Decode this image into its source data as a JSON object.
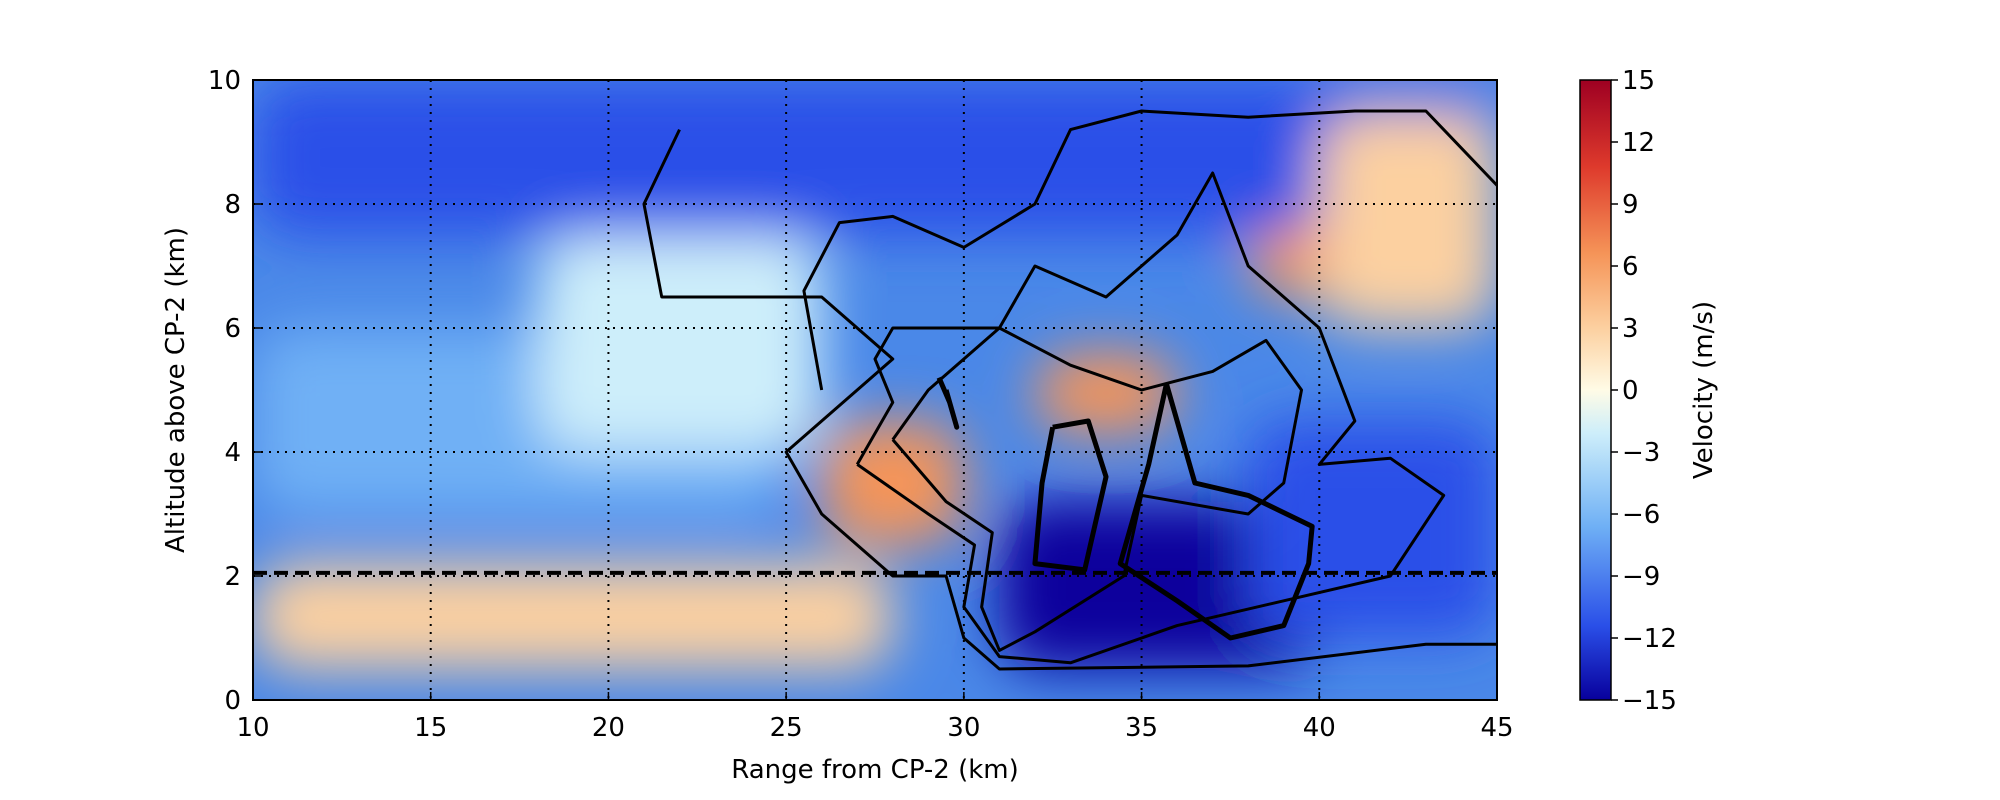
{
  "chart_data": {
    "type": "heatmap",
    "title": "",
    "xlabel": "Range from CP-2 (km)",
    "ylabel": "Altitude above CP-2 (km)",
    "xlim": [
      10,
      45
    ],
    "ylim": [
      0,
      10
    ],
    "xticks": [
      10,
      15,
      20,
      25,
      30,
      35,
      40,
      45
    ],
    "yticks": [
      0,
      2,
      4,
      6,
      8,
      10
    ],
    "grid": "dotted",
    "reference_line": {
      "y": 2.05,
      "style": "dashed"
    },
    "colorbar": {
      "label": "Velocity (m/s)",
      "range": [
        -15,
        15
      ],
      "ticks": [
        "15",
        "12",
        "9",
        "6",
        "3",
        "0",
        "−3",
        "−6",
        "−9",
        "−12",
        "−15"
      ],
      "colors": [
        "#08009c",
        "#2a4fe8",
        "#6fb0f5",
        "#cdeefa",
        "#fffbe6",
        "#fcd0a0",
        "#f59458",
        "#de3a2c",
        "#9e0022"
      ]
    },
    "velocity_regions": [
      {
        "v": -12,
        "x": [
          10,
          45
        ],
        "y": [
          7.5,
          10
        ]
      },
      {
        "v": -8,
        "x": [
          10,
          25
        ],
        "y": [
          3,
          6
        ]
      },
      {
        "v": -5,
        "x": [
          18,
          26
        ],
        "y": [
          4,
          7.5
        ]
      },
      {
        "v": 4,
        "x": [
          10,
          28
        ],
        "y": [
          0.5,
          2.2
        ]
      },
      {
        "v": 7,
        "x": [
          26,
          30
        ],
        "y": [
          2.5,
          4.5
        ]
      },
      {
        "v": 9,
        "x": [
          32,
          36
        ],
        "y": [
          4.3,
          5.6
        ]
      },
      {
        "v": 6,
        "x": [
          38,
          41
        ],
        "y": [
          6.5,
          7.6
        ]
      },
      {
        "v": 3,
        "x": [
          40,
          45
        ],
        "y": [
          6,
          9.5
        ]
      },
      {
        "v": -14,
        "x": [
          31,
          40
        ],
        "y": [
          0.5,
          3.2
        ]
      },
      {
        "v": -10,
        "x": [
          38,
          45
        ],
        "y": [
          1,
          4.5
        ]
      }
    ],
    "contours": [
      {
        "level": 1,
        "points": [
          [
            22,
            9.2
          ],
          [
            21,
            8
          ],
          [
            21.5,
            6.5
          ],
          [
            24,
            6.5
          ],
          [
            26,
            6.5
          ],
          [
            28,
            5.5
          ],
          [
            25,
            4
          ],
          [
            26,
            3
          ],
          [
            28,
            2
          ],
          [
            29.5,
            2
          ],
          [
            30,
            1
          ],
          [
            31,
            0.5
          ],
          [
            38,
            0.55
          ],
          [
            43,
            0.9
          ],
          [
            45,
            0.9
          ]
        ]
      },
      {
        "level": 1,
        "points": [
          [
            26,
            5
          ],
          [
            25.5,
            6.6
          ],
          [
            26.5,
            7.7
          ],
          [
            28,
            7.8
          ],
          [
            30,
            7.3
          ],
          [
            32,
            8
          ],
          [
            33,
            9.2
          ],
          [
            35,
            9.5
          ],
          [
            38,
            9.4
          ],
          [
            41,
            9.5
          ],
          [
            43,
            9.5
          ],
          [
            45,
            8.3
          ]
        ]
      },
      {
        "level": 2,
        "points": [
          [
            27,
            3.8
          ],
          [
            28,
            4.8
          ],
          [
            27.5,
            5.5
          ],
          [
            28,
            6
          ],
          [
            30,
            6
          ],
          [
            31,
            6
          ],
          [
            32,
            7
          ],
          [
            34,
            6.5
          ],
          [
            36,
            7.5
          ],
          [
            37,
            8.5
          ],
          [
            38,
            7
          ],
          [
            40,
            6
          ],
          [
            41,
            4.5
          ],
          [
            40,
            3.8
          ],
          [
            42,
            3.9
          ],
          [
            43.5,
            3.3
          ],
          [
            42,
            2
          ],
          [
            36,
            1.2
          ],
          [
            33,
            0.6
          ],
          [
            31,
            0.7
          ],
          [
            30,
            1.5
          ],
          [
            30.3,
            2.5
          ],
          [
            29,
            3
          ],
          [
            27,
            3.8
          ]
        ]
      },
      {
        "level": 3,
        "points": [
          [
            28,
            4.2
          ],
          [
            29,
            5
          ],
          [
            30,
            5.5
          ],
          [
            31,
            6
          ],
          [
            33,
            5.4
          ],
          [
            35,
            5
          ],
          [
            37,
            5.3
          ],
          [
            38.5,
            5.8
          ],
          [
            39.5,
            5
          ],
          [
            39,
            3.5
          ],
          [
            38,
            3
          ],
          [
            35,
            3.3
          ],
          [
            34.5,
            2
          ],
          [
            32,
            1.1
          ],
          [
            31,
            0.8
          ],
          [
            30.5,
            1.5
          ],
          [
            30.8,
            2.7
          ],
          [
            29.5,
            3.2
          ],
          [
            28,
            4.2
          ]
        ]
      },
      {
        "level": 4,
        "points": [
          [
            32.5,
            4.4
          ],
          [
            33.5,
            4.5
          ],
          [
            34,
            3.6
          ],
          [
            33.4,
            2.1
          ],
          [
            32,
            2.2
          ],
          [
            32.2,
            3.5
          ],
          [
            32.5,
            4.4
          ]
        ]
      },
      {
        "level": 4,
        "points": [
          [
            35.7,
            5.1
          ],
          [
            35.2,
            3.8
          ],
          [
            34.4,
            2.2
          ],
          [
            36,
            1.6
          ],
          [
            37.5,
            1
          ],
          [
            39,
            1.2
          ],
          [
            39.7,
            2.2
          ],
          [
            39.8,
            2.8
          ],
          [
            38,
            3.3
          ],
          [
            36.5,
            3.5
          ],
          [
            35.7,
            5.1
          ]
        ]
      },
      {
        "level": 4,
        "points": [
          [
            29.3,
            5.2
          ],
          [
            29.6,
            4.8
          ],
          [
            29.8,
            4.4
          ],
          [
            29.5,
            5
          ]
        ]
      }
    ]
  }
}
